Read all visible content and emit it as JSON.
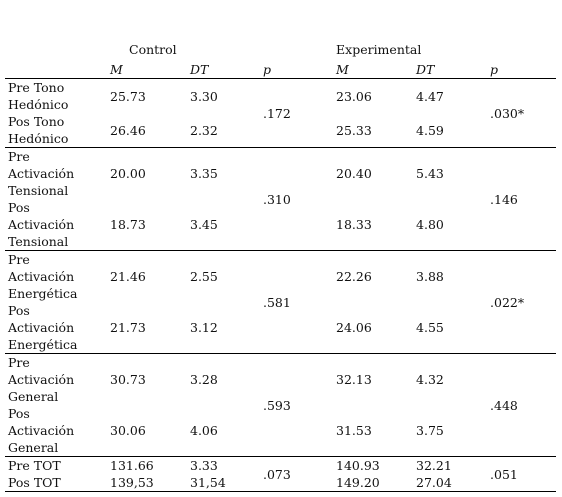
{
  "header": {
    "control": "Control",
    "experimental": "Experimental",
    "columns": [
      "M",
      "DT",
      "p",
      "M",
      "DT",
      "p"
    ]
  },
  "groups": [
    {
      "rows": [
        {
          "label": "Pre Tono Hedónico",
          "control": {
            "m": "25.73",
            "dt": "3.30"
          },
          "experimental": {
            "m": "23.06",
            "dt": "4.47"
          }
        },
        {
          "label": "Pos Tono Hedónico",
          "control": {
            "m": "26.46",
            "dt": "2.32"
          },
          "experimental": {
            "m": "25.33",
            "dt": "4.59"
          }
        }
      ],
      "control_p": ".172",
      "experimental_p": ".030*"
    },
    {
      "rows": [
        {
          "label": "Pre Activación Tensional",
          "control": {
            "m": "20.00",
            "dt": "3.35"
          },
          "experimental": {
            "m": "20.40",
            "dt": "5.43"
          }
        },
        {
          "label": "Pos Activación Tensional",
          "control": {
            "m": "18.73",
            "dt": "3.45"
          },
          "experimental": {
            "m": "18.33",
            "dt": "4.80"
          }
        }
      ],
      "control_p": ".310",
      "experimental_p": ".146"
    },
    {
      "rows": [
        {
          "label": "Pre Activación Energética",
          "control": {
            "m": "21.46",
            "dt": "2.55"
          },
          "experimental": {
            "m": "22.26",
            "dt": "3.88"
          }
        },
        {
          "label": "Pos Activación Energética",
          "control": {
            "m": "21.73",
            "dt": "3.12"
          },
          "experimental": {
            "m": "24.06",
            "dt": "4.55"
          }
        }
      ],
      "control_p": ".581",
      "experimental_p": ".022*"
    },
    {
      "rows": [
        {
          "label": "Pre Activación General",
          "control": {
            "m": "30.73",
            "dt": "3.28"
          },
          "experimental": {
            "m": "32.13",
            "dt": "4.32"
          }
        },
        {
          "label": "Pos Activación General",
          "control": {
            "m": "30.06",
            "dt": "4.06"
          },
          "experimental": {
            "m": "31.53",
            "dt": "3.75"
          }
        }
      ],
      "control_p": ".593",
      "experimental_p": ".448"
    },
    {
      "rows": [
        {
          "label": "Pre TOT",
          "control": {
            "m": "131.66",
            "dt": "3.33"
          },
          "experimental": {
            "m": "140.93",
            "dt": "32.21"
          }
        },
        {
          "label": "Pos TOT",
          "control": {
            "m": "139,53",
            "dt": "31,54"
          },
          "experimental": {
            "m": "149.20",
            "dt": "27.04"
          }
        }
      ],
      "control_p": ".073",
      "experimental_p": ".051"
    }
  ]
}
